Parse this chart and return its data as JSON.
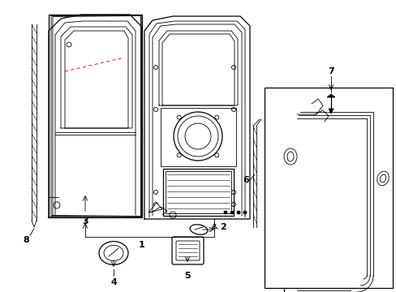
{
  "bg_color": "#ffffff",
  "line_color": "#000000",
  "red_dashed_color": "#cc0000",
  "figsize": [
    4.89,
    3.6
  ],
  "dpi": 100,
  "lw_thin": 0.6,
  "lw_med": 0.9,
  "lw_thick": 1.4
}
